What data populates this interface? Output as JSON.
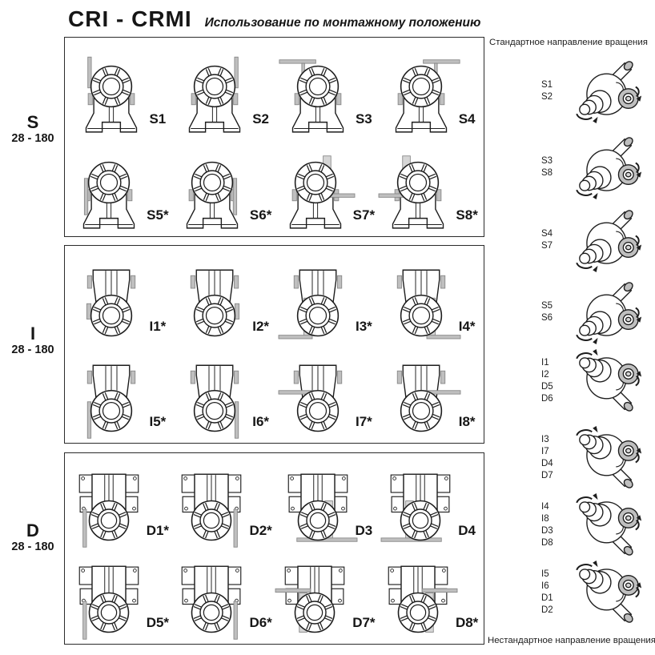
{
  "header": {
    "title": "CRI - CRMI",
    "subtitle": "Использование по монтажному положению"
  },
  "sections": [
    {
      "letter": "S",
      "range": "28 - 180",
      "type": "s",
      "cells": [
        {
          "label": "S1",
          "variant": "s1"
        },
        {
          "label": "S2",
          "variant": "s2"
        },
        {
          "label": "S3",
          "variant": "s3"
        },
        {
          "label": "S4",
          "variant": "s4"
        },
        {
          "label": "S5*",
          "variant": "s5"
        },
        {
          "label": "S6*",
          "variant": "s6"
        },
        {
          "label": "S7*",
          "variant": "s7"
        },
        {
          "label": "S8*",
          "variant": "s8"
        }
      ]
    },
    {
      "letter": "I",
      "range": "28 - 180",
      "type": "i",
      "cells": [
        {
          "label": "I1*",
          "variant": "i1"
        },
        {
          "label": "I2*",
          "variant": "i2"
        },
        {
          "label": "I3*",
          "variant": "i3"
        },
        {
          "label": "I4*",
          "variant": "i4"
        },
        {
          "label": "I5*",
          "variant": "i5"
        },
        {
          "label": "I6*",
          "variant": "i6"
        },
        {
          "label": "I7*",
          "variant": "i7"
        },
        {
          "label": "I8*",
          "variant": "i8"
        }
      ]
    },
    {
      "letter": "D",
      "range": "28 - 180",
      "type": "d",
      "cells": [
        {
          "label": "D1*",
          "variant": "d1"
        },
        {
          "label": "D2*",
          "variant": "d2"
        },
        {
          "label": "D3",
          "variant": "d3"
        },
        {
          "label": "D4",
          "variant": "d4"
        },
        {
          "label": "D5*",
          "variant": "d5"
        },
        {
          "label": "D6*",
          "variant": "d6"
        },
        {
          "label": "D7*",
          "variant": "d7"
        },
        {
          "label": "D8*",
          "variant": "d8"
        }
      ]
    }
  ],
  "right_panel": {
    "top_caption": "Стандартное направление вращения",
    "bottom_caption": "Нестандартное направление вращения",
    "items": [
      {
        "labels": [
          "S1",
          "S2"
        ]
      },
      {
        "labels": [
          "S3",
          "S8"
        ]
      },
      {
        "labels": [
          "S4",
          "S7"
        ]
      },
      {
        "labels": [
          "S5",
          "S6"
        ]
      },
      {
        "labels": [
          "I1",
          "I2",
          "D5",
          "D6"
        ]
      },
      {
        "labels": [
          "I3",
          "I7",
          "D4",
          "D7"
        ]
      },
      {
        "labels": [
          "I4",
          "I8",
          "D3",
          "D8"
        ]
      },
      {
        "labels": [
          "I5",
          "I6",
          "D1",
          "D2"
        ]
      }
    ]
  },
  "colors": {
    "outline": "#1d1d1d",
    "accent_gray": "#bfbfbf",
    "plate_gray": "#d6d6d6",
    "gray_stroke": "#878787",
    "border": "#2b2b2b"
  }
}
